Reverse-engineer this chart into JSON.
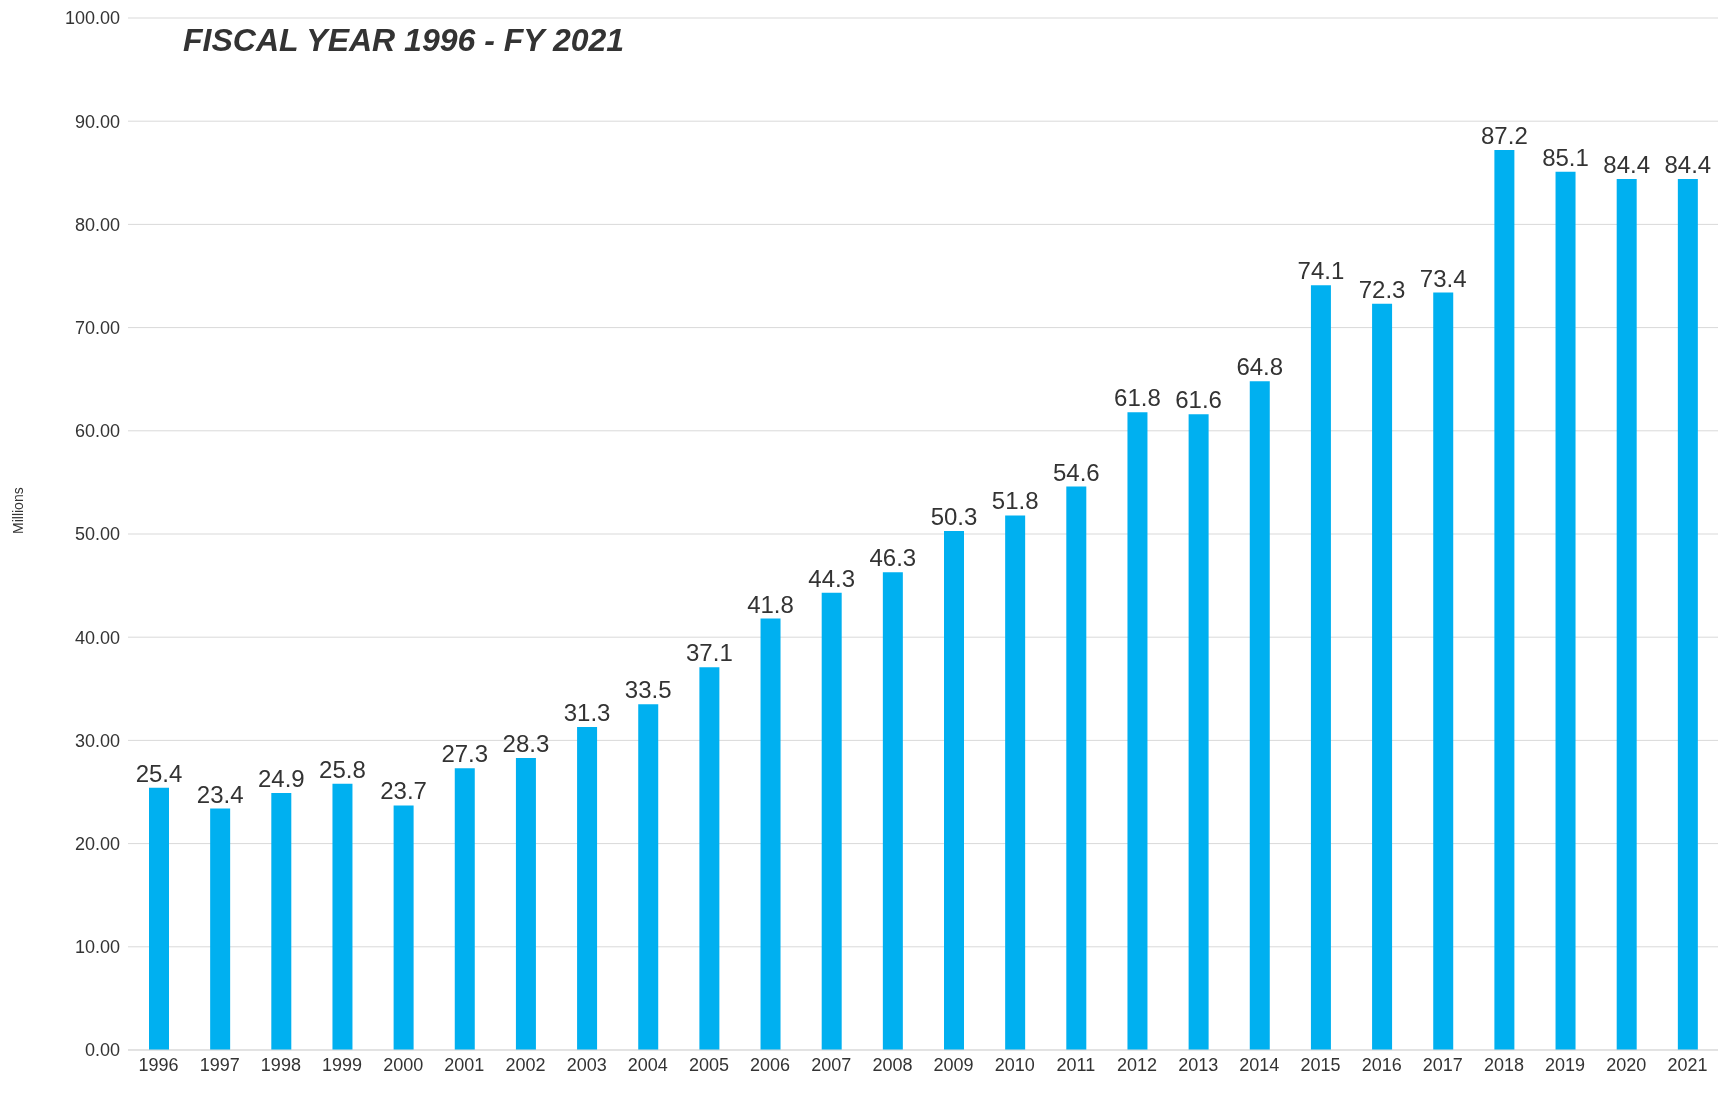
{
  "chart_data": {
    "type": "bar",
    "title": "FISCAL YEAR 1996 - FY 2021",
    "ylabel": "Millions",
    "categories": [
      "1996",
      "1997",
      "1998",
      "1999",
      "2000",
      "2001",
      "2002",
      "2003",
      "2004",
      "2005",
      "2006",
      "2007",
      "2008",
      "2009",
      "2010",
      "2011",
      "2012",
      "2013",
      "2014",
      "2015",
      "2016",
      "2017",
      "2018",
      "2019",
      "2020",
      "2021"
    ],
    "values": [
      25.4,
      23.4,
      24.9,
      25.8,
      23.7,
      27.3,
      28.3,
      31.3,
      33.5,
      37.1,
      41.8,
      44.3,
      46.3,
      50.3,
      51.8,
      54.6,
      61.8,
      61.6,
      64.8,
      74.1,
      72.3,
      73.4,
      87.2,
      85.1,
      84.4,
      84.4
    ],
    "color": "#00b0f0",
    "ylim": [
      0,
      100
    ],
    "yticks": [
      {
        "value": 0,
        "label": "0.00"
      },
      {
        "value": 10,
        "label": "10.00"
      },
      {
        "value": 20,
        "label": "20.00"
      },
      {
        "value": 30,
        "label": "30.00"
      },
      {
        "value": 40,
        "label": "40.00"
      },
      {
        "value": 50,
        "label": "50.00"
      },
      {
        "value": 60,
        "label": "60.00"
      },
      {
        "value": 70,
        "label": "70.00"
      },
      {
        "value": 80,
        "label": "80.00"
      },
      {
        "value": 90,
        "label": "90.00"
      },
      {
        "value": 100,
        "label": "100.00"
      }
    ],
    "grid": "y",
    "data_labels": true
  }
}
